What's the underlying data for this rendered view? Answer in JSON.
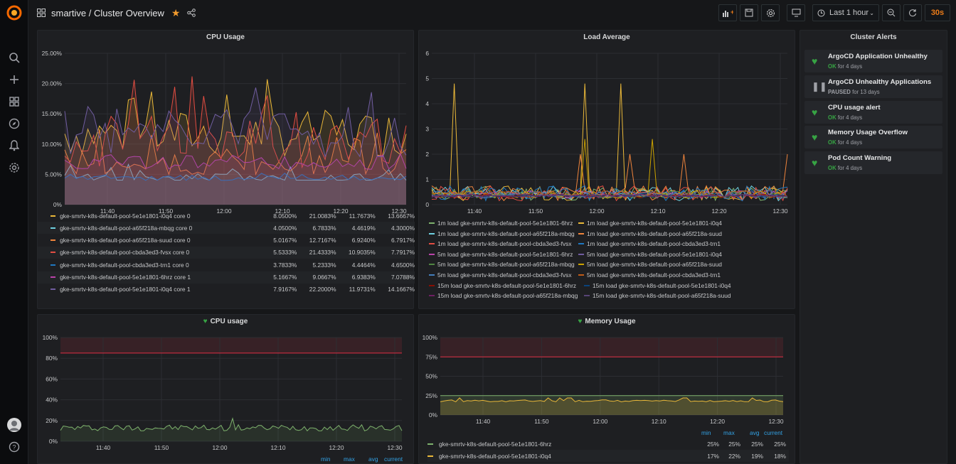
{
  "header": {
    "breadcrumb": "smartive / Cluster Overview",
    "time_range": "Last 1 hour",
    "refresh": "30s"
  },
  "sidebar": {
    "items": [
      "search-icon",
      "plus-icon",
      "dashboards-icon",
      "explore-icon",
      "alerting-icon",
      "settings-icon"
    ],
    "bottom": [
      "avatar",
      "help-icon"
    ]
  },
  "colors": {
    "accent": "#eb7b18",
    "ok": "#37a444",
    "threshold": "#e02f44"
  },
  "cpu_usage_panel": {
    "title": "CPU Usage",
    "y_ticks": [
      "25.00%",
      "20.00%",
      "15.00%",
      "10.00%",
      "5.00%",
      "0%"
    ],
    "x_ticks": [
      "11:40",
      "11:50",
      "12:00",
      "12:10",
      "12:20",
      "12:30"
    ],
    "legend": [
      {
        "name": "gke-smrtv-k8s-default-pool-5e1e1801-i0q4 core 0",
        "min": "8.0500%",
        "max": "21.0083%",
        "avg": "11.7673%",
        "current": "13.6667%",
        "color": "#eab839"
      },
      {
        "name": "gke-smrtv-k8s-default-pool-a65f218a-mbqg core 0",
        "min": "4.0500%",
        "max": "6.7833%",
        "avg": "4.4619%",
        "current": "4.3000%",
        "color": "#6ed0e0"
      },
      {
        "name": "gke-smrtv-k8s-default-pool-a65f218a-suud core 0",
        "min": "5.0167%",
        "max": "12.7167%",
        "avg": "6.9240%",
        "current": "6.7917%",
        "color": "#ef843c"
      },
      {
        "name": "gke-smrtv-k8s-default-pool-cbda3ed3-fvsx core 0",
        "min": "5.5333%",
        "max": "21.4333%",
        "avg": "10.9035%",
        "current": "7.7917%",
        "color": "#e24d42"
      },
      {
        "name": "gke-smrtv-k8s-default-pool-cbda3ed3-trn1 core 0",
        "min": "3.7833%",
        "max": "5.2333%",
        "avg": "4.4464%",
        "current": "4.6500%",
        "color": "#1f78c1"
      },
      {
        "name": "gke-smrtv-k8s-default-pool-5e1e1801-6hrz core 1",
        "min": "5.1667%",
        "max": "9.0667%",
        "avg": "6.9383%",
        "current": "7.0788%",
        "color": "#ba43a9"
      },
      {
        "name": "gke-smrtv-k8s-default-pool-5e1e1801-i0q4 core 1",
        "min": "7.9167%",
        "max": "22.2000%",
        "avg": "11.9731%",
        "current": "14.1667%",
        "color": "#705da0"
      }
    ]
  },
  "load_average_panel": {
    "title": "Load Average",
    "y_ticks": [
      "6",
      "5",
      "4",
      "3",
      "2",
      "1",
      "0"
    ],
    "x_ticks": [
      "11:40",
      "11:50",
      "12:00",
      "12:10",
      "12:20",
      "12:30"
    ],
    "legend": [
      {
        "name": "1m load gke-smrtv-k8s-default-pool-5e1e1801-6hrz",
        "color": "#7eb26d"
      },
      {
        "name": "1m load gke-smrtv-k8s-default-pool-5e1e1801-i0q4",
        "color": "#eab839"
      },
      {
        "name": "1m load gke-smrtv-k8s-default-pool-a65f218a-mbqg",
        "color": "#6ed0e0"
      },
      {
        "name": "1m load gke-smrtv-k8s-default-pool-a65f218a-suud",
        "color": "#ef843c"
      },
      {
        "name": "1m load gke-smrtv-k8s-default-pool-cbda3ed3-fvsx",
        "color": "#e24d42"
      },
      {
        "name": "1m load gke-smrtv-k8s-default-pool-cbda3ed3-trn1",
        "color": "#1f78c1"
      },
      {
        "name": "5m load gke-smrtv-k8s-default-pool-5e1e1801-6hrz",
        "color": "#ba43a9"
      },
      {
        "name": "5m load gke-smrtv-k8s-default-pool-5e1e1801-i0q4",
        "color": "#705da0"
      },
      {
        "name": "5m load gke-smrtv-k8s-default-pool-a65f218a-mbqg",
        "color": "#508642"
      },
      {
        "name": "5m load gke-smrtv-k8s-default-pool-a65f218a-suud",
        "color": "#cca300"
      },
      {
        "name": "5m load gke-smrtv-k8s-default-pool-cbda3ed3-fvsx",
        "color": "#447ebc"
      },
      {
        "name": "5m load gke-smrtv-k8s-default-pool-cbda3ed3-trn1",
        "color": "#c15c17"
      },
      {
        "name": "15m load gke-smrtv-k8s-default-pool-5e1e1801-6hrz",
        "color": "#890f02"
      },
      {
        "name": "15m load gke-smrtv-k8s-default-pool-5e1e1801-i0q4",
        "color": "#0a437c"
      },
      {
        "name": "15m load gke-smrtv-k8s-default-pool-a65f218a-mbqg",
        "color": "#6d1f62"
      },
      {
        "name": "15m load gke-smrtv-k8s-default-pool-a65f218a-suud",
        "color": "#584477"
      }
    ]
  },
  "alerts_panel": {
    "title": "Cluster Alerts",
    "alerts": [
      {
        "name": "ArgoCD Application Unhealthy",
        "state": "OK",
        "since": "for 4 days"
      },
      {
        "name": "ArgoCD Unhealthy Applications",
        "state": "PAUSED",
        "since": "for 13 days"
      },
      {
        "name": "CPU usage alert",
        "state": "OK",
        "since": "for 4 days"
      },
      {
        "name": "Memory Usage Overflow",
        "state": "OK",
        "since": "for 4 days"
      },
      {
        "name": "Pod Count Warning",
        "state": "OK",
        "since": "for 4 days"
      }
    ]
  },
  "cpu_alert_panel": {
    "title": "CPU usage",
    "y_ticks": [
      "100%",
      "80%",
      "60%",
      "40%",
      "20%",
      "0%"
    ],
    "x_ticks": [
      "11:40",
      "11:50",
      "12:00",
      "12:10",
      "12:20",
      "12:30"
    ],
    "threshold": "85%",
    "headers": [
      "min",
      "max",
      "avg",
      "current"
    ]
  },
  "memory_panel": {
    "title": "Memory Usage",
    "y_ticks": [
      "100%",
      "75%",
      "50%",
      "25%",
      "0%"
    ],
    "x_ticks": [
      "11:40",
      "11:50",
      "12:00",
      "12:10",
      "12:20",
      "12:30"
    ],
    "threshold": "75%",
    "headers": [
      "min",
      "max",
      "avg",
      "current"
    ],
    "rows": [
      {
        "name": "gke-smrtv-k8s-default-pool-5e1e1801-6hrz",
        "min": "25%",
        "max": "25%",
        "avg": "25%",
        "current": "25%",
        "color": "#7eb26d"
      },
      {
        "name": "gke-smrtv-k8s-default-pool-5e1e1801-i0q4",
        "min": "17%",
        "max": "22%",
        "avg": "19%",
        "current": "18%",
        "color": "#eab839"
      }
    ]
  }
}
